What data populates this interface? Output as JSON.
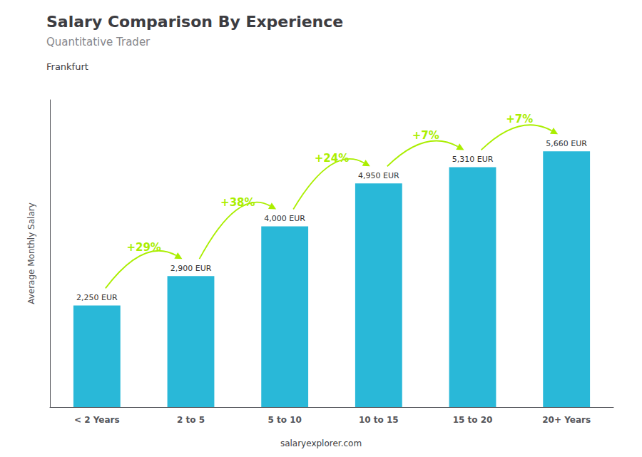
{
  "chart_data": {
    "type": "bar",
    "title": "Salary Comparison By Experience",
    "subtitle": "Quantitative Trader",
    "annotations": [
      "Frankfurt"
    ],
    "source": "salaryexplorer.com",
    "ylabel": "Average Monthly Salary",
    "categories": [
      "< 2 Years",
      "2 to 5",
      "5 to 10",
      "10 to 15",
      "15 to 20",
      "20+ Years"
    ],
    "values": [
      2250,
      2900,
      4000,
      4950,
      5310,
      5660
    ],
    "value_labels": [
      "2,250 EUR",
      "2,900 EUR",
      "4,000 EUR",
      "4,950 EUR",
      "5,310 EUR",
      "5,660 EUR"
    ],
    "data_labels": true,
    "color": "#29b8d8",
    "ylim": [
      0,
      6800
    ],
    "grid": false,
    "tick_labels": "x",
    "changes": {
      "values": [
        29,
        38,
        24,
        7,
        7
      ],
      "value_labels": [
        "+29%",
        "+38%",
        "+24%",
        "+7%",
        "+7%"
      ],
      "color": "#aaee00"
    }
  }
}
